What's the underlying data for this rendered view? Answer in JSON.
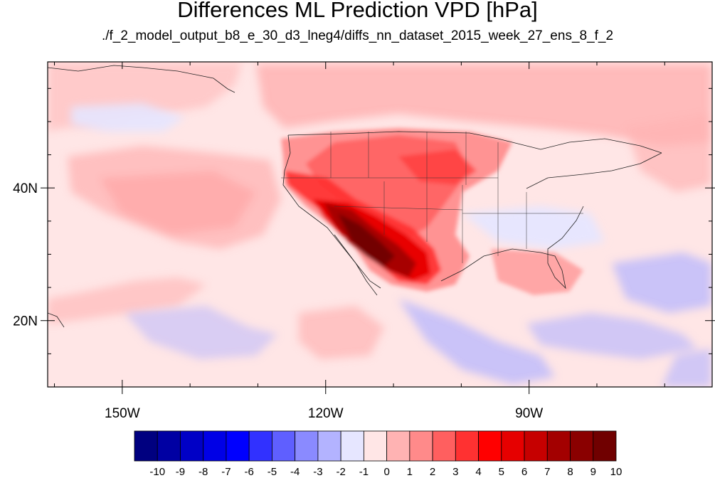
{
  "title": "Differences ML Prediction VPD [hPa]",
  "subtitle": "./f_2_model_output_b8_e_30_d3_lneg4/diffs_nn_dataset_2015_week_27_ens_8_f_2",
  "map": {
    "lon_range": [
      -161,
      -63
    ],
    "lat_range": [
      10,
      59
    ],
    "lon_ticks": [
      {
        "value": -150,
        "label": "150W"
      },
      {
        "value": -120,
        "label": "120W"
      },
      {
        "value": -90,
        "label": "90W"
      }
    ],
    "lat_ticks": [
      {
        "value": 40,
        "label": "40N"
      },
      {
        "value": 20,
        "label": "20N"
      }
    ],
    "background_color": "#ffe6e6"
  },
  "colorbar": {
    "labels": [
      "-10",
      "-9",
      "-8",
      "-7",
      "-6",
      "-5",
      "-4",
      "-3",
      "-2",
      "-1",
      "0",
      "1",
      "2",
      "3",
      "4",
      "5",
      "6",
      "7",
      "8",
      "9",
      "10"
    ],
    "colors": [
      "#000080",
      "#0000a3",
      "#0000c6",
      "#0000e6",
      "#0000ff",
      "#3131ff",
      "#5f5fff",
      "#8a8aff",
      "#b3b3ff",
      "#e6e6ff",
      "#ffe6e6",
      "#ffb3b3",
      "#ff8a8a",
      "#ff5f5f",
      "#ff3131",
      "#ff0000",
      "#e60000",
      "#c60000",
      "#a30000",
      "#8a0000",
      "#700000"
    ]
  }
}
